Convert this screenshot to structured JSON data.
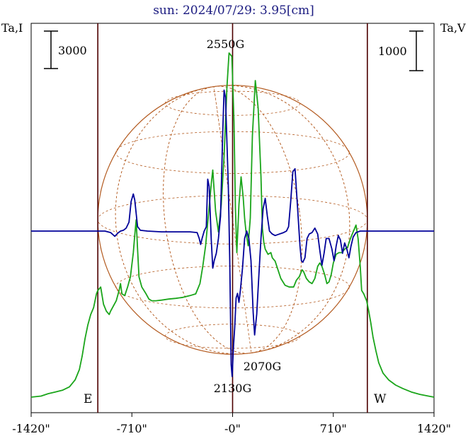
{
  "chart_data": {
    "type": "line",
    "title": "sun: 2024/07/29: 3.95[cm]",
    "ylabel_left": "Ta,I",
    "ylabel_right": "Ta,V",
    "scale_left": "3000",
    "scale_right": "1000",
    "x_ticks": [
      "-1420\"",
      "-710\"",
      "-0\"",
      "710\"",
      "1420\""
    ],
    "x_tick_values": [
      -1420,
      -710,
      0,
      710,
      1420
    ],
    "xlim": [
      -1420,
      1420
    ],
    "limb_labels": {
      "east": "E",
      "west": "W"
    },
    "limb_positions": [
      -950,
      950
    ],
    "annotations": [
      {
        "text": "2550G",
        "x": 0,
        "series": "Ta,I"
      },
      {
        "text": "2070G",
        "x": 40,
        "series": "Ta,V"
      },
      {
        "text": "2130G",
        "x": 0,
        "series": "Ta,V"
      }
    ],
    "colors": {
      "title": "#1a1a80",
      "intensity": "#1aa51a",
      "polarization": "#000099",
      "limb_lines": "#4d0000",
      "center_line": "#4d0000",
      "disk": "#b35a1f"
    },
    "series": [
      {
        "name": "Ta,I",
        "points": [
          [
            -1420,
            0.0
          ],
          [
            -1350,
            0.003
          ],
          [
            -1300,
            0.01
          ],
          [
            -1250,
            0.015
          ],
          [
            -1200,
            0.02
          ],
          [
            -1150,
            0.03
          ],
          [
            -1110,
            0.05
          ],
          [
            -1080,
            0.08
          ],
          [
            -1060,
            0.12
          ],
          [
            -1040,
            0.17
          ],
          [
            -1020,
            0.21
          ],
          [
            -1000,
            0.24
          ],
          [
            -980,
            0.26
          ],
          [
            -960,
            0.3
          ],
          [
            -950,
            0.31
          ],
          [
            -930,
            0.32
          ],
          [
            -910,
            0.27
          ],
          [
            -890,
            0.25
          ],
          [
            -870,
            0.24
          ],
          [
            -860,
            0.25
          ],
          [
            -840,
            0.265
          ],
          [
            -820,
            0.28
          ],
          [
            -800,
            0.31
          ],
          [
            -790,
            0.33
          ],
          [
            -780,
            0.3
          ],
          [
            -760,
            0.295
          ],
          [
            -740,
            0.32
          ],
          [
            -720,
            0.35
          ],
          [
            -700,
            0.42
          ],
          [
            -690,
            0.47
          ],
          [
            -680,
            0.515
          ],
          [
            -670,
            0.43
          ],
          [
            -660,
            0.35
          ],
          [
            -640,
            0.32
          ],
          [
            -610,
            0.3
          ],
          [
            -590,
            0.285
          ],
          [
            -570,
            0.28
          ],
          [
            -540,
            0.28
          ],
          [
            -500,
            0.282
          ],
          [
            -450,
            0.285
          ],
          [
            -400,
            0.287
          ],
          [
            -350,
            0.29
          ],
          [
            -300,
            0.295
          ],
          [
            -260,
            0.3
          ],
          [
            -230,
            0.33
          ],
          [
            -210,
            0.38
          ],
          [
            -190,
            0.44
          ],
          [
            -170,
            0.53
          ],
          [
            -150,
            0.62
          ],
          [
            -140,
            0.66
          ],
          [
            -120,
            0.54
          ],
          [
            -100,
            0.48
          ],
          [
            -80,
            0.56
          ],
          [
            -60,
            0.7
          ],
          [
            -40,
            0.9
          ],
          [
            -25,
            1.0
          ],
          [
            -5,
            0.99
          ],
          [
            10,
            0.8
          ],
          [
            20,
            0.55
          ],
          [
            30,
            0.42
          ],
          [
            45,
            0.56
          ],
          [
            60,
            0.64
          ],
          [
            75,
            0.58
          ],
          [
            85,
            0.52
          ],
          [
            95,
            0.48
          ],
          [
            110,
            0.44
          ],
          [
            125,
            0.52
          ],
          [
            140,
            0.76
          ],
          [
            160,
            0.92
          ],
          [
            180,
            0.84
          ],
          [
            200,
            0.64
          ],
          [
            210,
            0.49
          ],
          [
            220,
            0.45
          ],
          [
            230,
            0.43
          ],
          [
            250,
            0.415
          ],
          [
            270,
            0.42
          ],
          [
            280,
            0.405
          ],
          [
            300,
            0.395
          ],
          [
            320,
            0.37
          ],
          [
            340,
            0.345
          ],
          [
            370,
            0.325
          ],
          [
            400,
            0.32
          ],
          [
            430,
            0.32
          ],
          [
            450,
            0.34
          ],
          [
            470,
            0.35
          ],
          [
            490,
            0.37
          ],
          [
            500,
            0.365
          ],
          [
            520,
            0.345
          ],
          [
            540,
            0.335
          ],
          [
            560,
            0.33
          ],
          [
            580,
            0.345
          ],
          [
            600,
            0.38
          ],
          [
            615,
            0.39
          ],
          [
            630,
            0.38
          ],
          [
            650,
            0.355
          ],
          [
            665,
            0.33
          ],
          [
            680,
            0.335
          ],
          [
            695,
            0.355
          ],
          [
            710,
            0.39
          ],
          [
            730,
            0.415
          ],
          [
            750,
            0.42
          ],
          [
            770,
            0.42
          ],
          [
            790,
            0.43
          ],
          [
            810,
            0.435
          ],
          [
            830,
            0.46
          ],
          [
            850,
            0.48
          ],
          [
            870,
            0.5
          ],
          [
            885,
            0.46
          ],
          [
            900,
            0.38
          ],
          [
            910,
            0.31
          ],
          [
            925,
            0.3
          ],
          [
            945,
            0.28
          ],
          [
            960,
            0.25
          ],
          [
            975,
            0.215
          ],
          [
            990,
            0.175
          ],
          [
            1010,
            0.135
          ],
          [
            1030,
            0.1
          ],
          [
            1060,
            0.07
          ],
          [
            1100,
            0.05
          ],
          [
            1150,
            0.035
          ],
          [
            1200,
            0.025
          ],
          [
            1260,
            0.015
          ],
          [
            1320,
            0.008
          ],
          [
            1380,
            0.003
          ],
          [
            1420,
            0.0
          ]
        ]
      },
      {
        "name": "Ta,V",
        "points": [
          [
            -1420,
            0.0
          ],
          [
            -1300,
            0.0
          ],
          [
            -1200,
            0.0
          ],
          [
            -1100,
            0.0
          ],
          [
            -1000,
            0.0
          ],
          [
            -960,
            0.0
          ],
          [
            -900,
            0.0
          ],
          [
            -860,
            -0.01
          ],
          [
            -830,
            -0.035
          ],
          [
            -810,
            -0.015
          ],
          [
            -790,
            0.0
          ],
          [
            -770,
            0.005
          ],
          [
            -750,
            0.02
          ],
          [
            -730,
            0.06
          ],
          [
            -715,
            0.2
          ],
          [
            -700,
            0.25
          ],
          [
            -690,
            0.21
          ],
          [
            -680,
            0.12
          ],
          [
            -670,
            0.03
          ],
          [
            -650,
            0.005
          ],
          [
            -600,
            0.0
          ],
          [
            -500,
            -0.005
          ],
          [
            -400,
            -0.005
          ],
          [
            -300,
            -0.005
          ],
          [
            -250,
            -0.01
          ],
          [
            -235,
            -0.05
          ],
          [
            -225,
            -0.09
          ],
          [
            -215,
            -0.05
          ],
          [
            -200,
            0.0
          ],
          [
            -185,
            0.03
          ],
          [
            -175,
            0.35
          ],
          [
            -165,
            0.3
          ],
          [
            -150,
            -0.06
          ],
          [
            -140,
            -0.25
          ],
          [
            -130,
            -0.2
          ],
          [
            -115,
            -0.15
          ],
          [
            -100,
            -0.05
          ],
          [
            -85,
            0.1
          ],
          [
            -70,
            0.65
          ],
          [
            -60,
            0.95
          ],
          [
            -50,
            0.9
          ],
          [
            -40,
            0.6
          ],
          [
            -30,
            0.3
          ],
          [
            -20,
            -0.2
          ],
          [
            -10,
            -0.9
          ],
          [
            -3,
            -0.98
          ],
          [
            5,
            -0.8
          ],
          [
            15,
            -0.65
          ],
          [
            25,
            -0.45
          ],
          [
            35,
            -0.42
          ],
          [
            45,
            -0.48
          ],
          [
            55,
            -0.4
          ],
          [
            70,
            -0.25
          ],
          [
            85,
            -0.05
          ],
          [
            100,
            0.0
          ],
          [
            115,
            -0.05
          ],
          [
            130,
            -0.2
          ],
          [
            145,
            -0.55
          ],
          [
            155,
            -0.7
          ],
          [
            170,
            -0.56
          ],
          [
            185,
            -0.3
          ],
          [
            200,
            -0.05
          ],
          [
            215,
            0.15
          ],
          [
            230,
            0.22
          ],
          [
            245,
            0.1
          ],
          [
            260,
            0.0
          ],
          [
            280,
            -0.02
          ],
          [
            300,
            -0.03
          ],
          [
            330,
            -0.02
          ],
          [
            360,
            -0.01
          ],
          [
            380,
            0.0
          ],
          [
            395,
            0.03
          ],
          [
            410,
            0.2
          ],
          [
            425,
            0.4
          ],
          [
            440,
            0.42
          ],
          [
            455,
            0.2
          ],
          [
            465,
            0.05
          ],
          [
            475,
            -0.1
          ],
          [
            485,
            -0.2
          ],
          [
            495,
            -0.21
          ],
          [
            510,
            -0.18
          ],
          [
            525,
            -0.05
          ],
          [
            540,
            -0.02
          ],
          [
            560,
            -0.01
          ],
          [
            580,
            0.02
          ],
          [
            600,
            -0.02
          ],
          [
            615,
            -0.13
          ],
          [
            630,
            -0.23
          ],
          [
            645,
            -0.15
          ],
          [
            660,
            -0.05
          ],
          [
            680,
            -0.05
          ],
          [
            700,
            -0.12
          ],
          [
            715,
            -0.2
          ],
          [
            730,
            -0.1
          ],
          [
            745,
            -0.03
          ],
          [
            760,
            -0.06
          ],
          [
            775,
            -0.15
          ],
          [
            790,
            -0.08
          ],
          [
            805,
            -0.12
          ],
          [
            820,
            -0.18
          ],
          [
            835,
            -0.1
          ],
          [
            850,
            -0.04
          ],
          [
            870,
            -0.01
          ],
          [
            900,
            0.0
          ],
          [
            950,
            0.0
          ],
          [
            1000,
            0.0
          ],
          [
            1100,
            0.0
          ],
          [
            1200,
            0.0
          ],
          [
            1300,
            0.0
          ],
          [
            1420,
            0.0
          ]
        ]
      }
    ]
  }
}
